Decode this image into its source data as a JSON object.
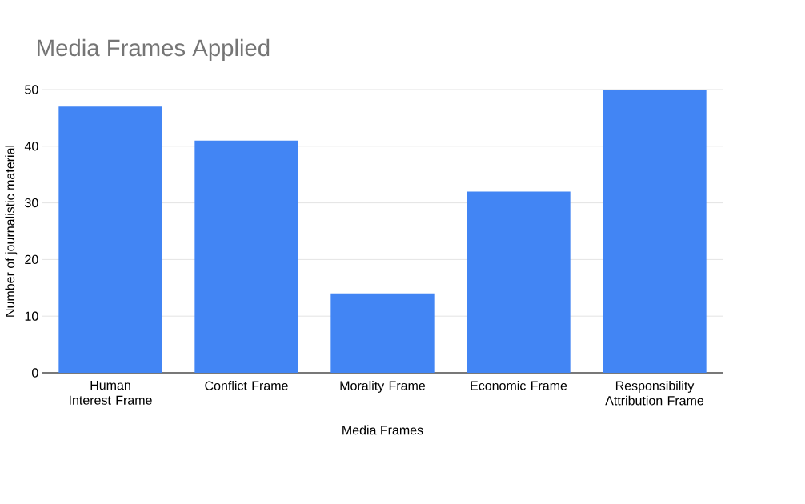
{
  "chart_data": {
    "type": "bar",
    "title": "Media Frames Applied",
    "xlabel": "Media Frames",
    "ylabel": "Number of journalistic material",
    "categories": [
      "Human Interest Frame",
      "Conflict Frame",
      "Morality  Frame",
      "Economic Frame",
      "Responsibility Attribution Frame"
    ],
    "values": [
      47,
      41,
      14,
      32,
      50
    ],
    "color": "#4285f4",
    "ylim": [
      0,
      50
    ],
    "yticks": [
      0,
      10,
      20,
      30,
      40,
      50
    ],
    "grid": "y"
  }
}
